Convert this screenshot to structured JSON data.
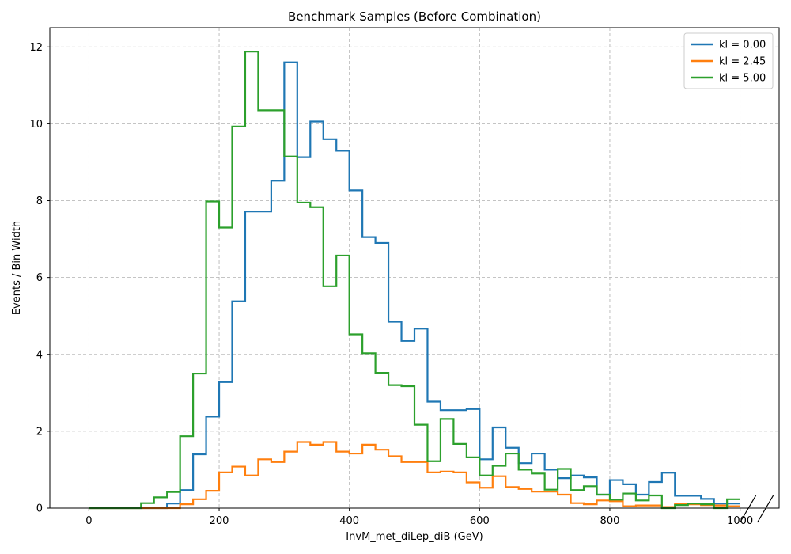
{
  "chart_data": {
    "type": "line",
    "title": "Benchmark Samples (Before Combination)",
    "xlabel": "InvM_met_diLep_diB (GeV)",
    "ylabel": "Events / Bin Width",
    "xlim": [
      -60,
      1060
    ],
    "ylim": [
      0,
      12.5
    ],
    "x_ticks": [
      0,
      200,
      400,
      600,
      800,
      1000
    ],
    "y_ticks": [
      0,
      2,
      4,
      6,
      8,
      10,
      12
    ],
    "grid": true,
    "legend_position": "top-right",
    "bin_edges": [
      0,
      20,
      40,
      60,
      80,
      100,
      120,
      140,
      160,
      180,
      200,
      220,
      240,
      260,
      280,
      300,
      320,
      340,
      360,
      380,
      400,
      420,
      440,
      460,
      480,
      500,
      520,
      540,
      560,
      580,
      600,
      620,
      640,
      660,
      680,
      700,
      720,
      740,
      760,
      780,
      800,
      820,
      840,
      860,
      880,
      900,
      920,
      940,
      960,
      980,
      1000
    ],
    "series": [
      {
        "name": "kl = 0.00",
        "color": "#1f77b4",
        "values": [
          0,
          0,
          0,
          0,
          0,
          0,
          0.12,
          0.47,
          1.4,
          2.38,
          3.28,
          5.38,
          7.72,
          7.72,
          8.52,
          11.6,
          9.13,
          10.06,
          9.6,
          9.3,
          8.27,
          7.05,
          6.9,
          4.85,
          4.35,
          4.67,
          2.77,
          2.55,
          2.55,
          2.58,
          1.27,
          2.1,
          1.57,
          1.17,
          1.42,
          1.0,
          0.78,
          0.85,
          0.8,
          0.35,
          0.73,
          0.62,
          0.35,
          0.68,
          0.92,
          0.32,
          0.32,
          0.24,
          0.12,
          0.12
        ]
      },
      {
        "name": "kl = 2.45",
        "color": "#ff7f0e",
        "values": [
          0,
          0,
          0,
          0,
          0,
          0,
          0,
          0.1,
          0.23,
          0.45,
          0.93,
          1.08,
          0.85,
          1.27,
          1.2,
          1.47,
          1.72,
          1.65,
          1.72,
          1.47,
          1.42,
          1.65,
          1.52,
          1.35,
          1.2,
          1.2,
          0.93,
          0.95,
          0.93,
          0.67,
          0.53,
          0.83,
          0.55,
          0.5,
          0.43,
          0.43,
          0.35,
          0.13,
          0.1,
          0.2,
          0.18,
          0.05,
          0.07,
          0.07,
          0.03,
          0.1,
          0.1,
          0.08,
          0.07,
          0.05
        ]
      },
      {
        "name": "kl = 5.00",
        "color": "#2ca02c",
        "values": [
          0,
          0,
          0,
          0,
          0.13,
          0.28,
          0.42,
          1.87,
          3.5,
          7.98,
          7.3,
          9.93,
          11.88,
          10.35,
          10.35,
          9.15,
          7.95,
          7.83,
          5.77,
          6.57,
          4.52,
          4.03,
          3.52,
          3.2,
          3.17,
          2.17,
          1.22,
          2.32,
          1.67,
          1.32,
          0.85,
          1.1,
          1.42,
          1.0,
          0.9,
          0.48,
          1.02,
          0.47,
          0.57,
          0.35,
          0.22,
          0.38,
          0.2,
          0.33,
          0,
          0.08,
          0.12,
          0.1,
          0,
          0.23
        ]
      }
    ]
  }
}
